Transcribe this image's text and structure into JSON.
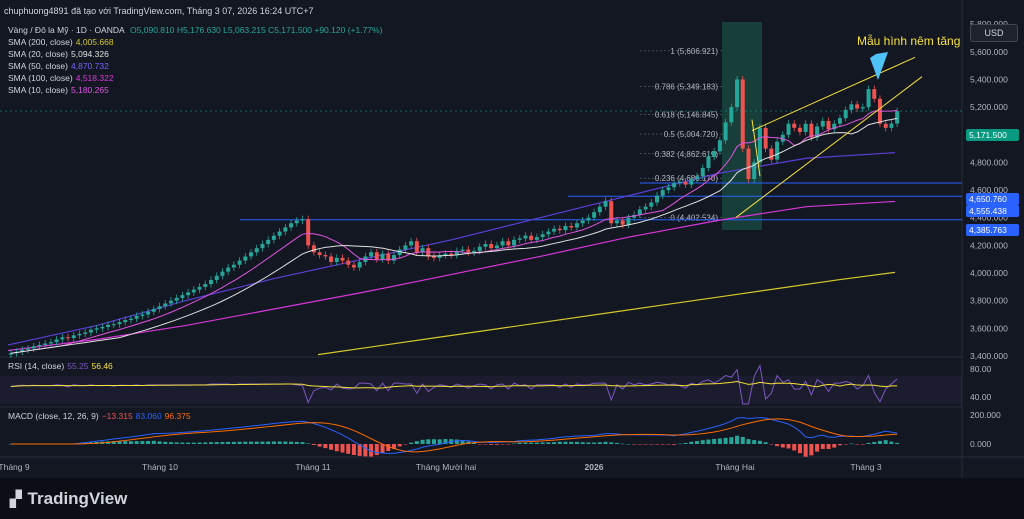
{
  "header": {
    "title": "chuphuong4891 đã tạo với TradingView.com, Tháng 3 07, 2026 16:24 UTC+7"
  },
  "currency_button": "USD",
  "brand": "TradingView",
  "colors": {
    "background": "#131722",
    "up": "#26a69a",
    "down": "#ef5350",
    "sma200": "#d4c82a",
    "sma20": "#e0e0e0",
    "sma50": "#5b3fd6",
    "sma100": "#d836d8",
    "sma10": "#e055e0",
    "level_line": "#2962ff",
    "wedge": "#f7e13a",
    "rsi": "#7e57c2",
    "rsi_ma": "#f7e13a",
    "macd": "#2962ff",
    "signal": "#ff6d00"
  },
  "legend": {
    "symbol": "Vàng / Đô la Mỹ · 1D · OANDA",
    "ohlc": "O5,090.810 H5,176.630 L5,063.215 C5,171.500 +90.120 (+1.77%)",
    "sma": [
      {
        "label": "SMA (200, close)",
        "value": "4,005.668",
        "color": "#d4c82a"
      },
      {
        "label": "SMA (20, close)",
        "value": "5,094.326",
        "color": "#e0e0e0"
      },
      {
        "label": "SMA (50, close)",
        "value": "4,870.732",
        "color": "#5b3fd6"
      },
      {
        "label": "SMA (100, close)",
        "value": "4,518.322",
        "color": "#d836d8"
      },
      {
        "label": "SMA (10, close)",
        "value": "5,180.265",
        "color": "#e055e0"
      }
    ],
    "rsi": {
      "label": "RSI (14, close)",
      "v1": "55.25",
      "v2": "56.46"
    },
    "macd": {
      "label": "MACD (close, 12, 26, 9)",
      "v1": "−13.315",
      "v2": "83.060",
      "v3": "96.375"
    }
  },
  "annotation": "Mẫu hình nêm tăng",
  "price_tags": [
    {
      "value": "5,171.500",
      "price": 5171.5,
      "color": "#089981"
    },
    {
      "value": "4,650.760",
      "price": 4650.76,
      "color": "#2962ff"
    },
    {
      "value": "4,555.438",
      "price": 4555.44,
      "color": "#2962ff"
    },
    {
      "value": "4,385.763",
      "price": 4385.76,
      "color": "#2962ff"
    }
  ],
  "chart_data": {
    "type": "candlestick",
    "y_ticks": [
      "5,800.000",
      "5,600.000",
      "5,400.000",
      "5,200.000",
      "5,000.000",
      "4,800.000",
      "4,600.000",
      "4,400.000",
      "4,200.000",
      "4,000.000",
      "3,800.000",
      "3,600.000",
      "3,400.000"
    ],
    "y_tick_values": [
      5800,
      5600,
      5400,
      5200,
      5000,
      4800,
      4600,
      4400,
      4200,
      4000,
      3800,
      3600,
      3400
    ],
    "ylim": [
      3400,
      5830
    ],
    "x_ticks": [
      "Tháng 9",
      "Tháng 10",
      "Tháng 11",
      "Tháng Mười hai",
      "2026",
      "Tháng Hai",
      "Tháng 3"
    ],
    "fib_levels": [
      {
        "label": "1 (5,606.921)",
        "value": 5606.92
      },
      {
        "label": "0.786 (5,349.183)",
        "value": 5349.18
      },
      {
        "label": "0.618 (5,146.845)",
        "value": 5146.85
      },
      {
        "label": "0.5 (5,004.720)",
        "value": 5004.72
      },
      {
        "label": "0.382 (4,862.619)",
        "value": 4862.62
      },
      {
        "label": "0.236 (4,686.170)",
        "value": 4686.17
      },
      {
        "label": "0 (4,402.534)",
        "value": 4402.53
      }
    ],
    "closes": [
      3420,
      3430,
      3445,
      3455,
      3470,
      3480,
      3490,
      3500,
      3520,
      3535,
      3530,
      3550,
      3560,
      3570,
      3590,
      3600,
      3610,
      3625,
      3630,
      3645,
      3660,
      3670,
      3690,
      3700,
      3720,
      3740,
      3760,
      3780,
      3800,
      3820,
      3840,
      3860,
      3880,
      3900,
      3920,
      3950,
      3980,
      4010,
      4040,
      4060,
      4090,
      4120,
      4150,
      4180,
      4210,
      4240,
      4270,
      4300,
      4330,
      4360,
      4380,
      4390,
      4200,
      4150,
      4130,
      4120,
      4080,
      4110,
      4090,
      4060,
      4040,
      4080,
      4120,
      4150,
      4100,
      4140,
      4090,
      4130,
      4170,
      4200,
      4230,
      4150,
      4180,
      4120,
      4110,
      4130,
      4140,
      4130,
      4160,
      4170,
      4150,
      4160,
      4190,
      4210,
      4180,
      4200,
      4230,
      4200,
      4240,
      4250,
      4270,
      4240,
      4260,
      4280,
      4300,
      4320,
      4310,
      4340,
      4330,
      4360,
      4380,
      4400,
      4440,
      4480,
      4520,
      4360,
      4380,
      4350,
      4400,
      4420,
      4460,
      4480,
      4510,
      4560,
      4600,
      4620,
      4650,
      4660,
      4640,
      4680,
      4700,
      4760,
      4840,
      4880,
      4960,
      5090,
      5200,
      5400,
      4900,
      4680,
      4800,
      5050,
      4900,
      4820,
      4950,
      5000,
      5080,
      5050,
      5020,
      5080,
      4980,
      5060,
      5100,
      5040,
      5080,
      5120,
      5180,
      5220,
      5190,
      5200,
      5330,
      5260,
      5080,
      5050,
      5081,
      5171
    ],
    "sma_series": [
      {
        "name": "SMA 200",
        "values": [
          3410,
          3470,
          3530,
          3590,
          3650,
          3710,
          3770,
          3830,
          3890,
          3950,
          4005
        ]
      },
      {
        "name": "SMA 100",
        "values": [
          3440,
          3520,
          3620,
          3740,
          3860,
          3990,
          4120,
          4260,
          4380,
          4480,
          4518
        ]
      },
      {
        "name": "SMA 50",
        "values": [
          3480,
          3620,
          3800,
          3960,
          4100,
          4240,
          4400,
          4560,
          4720,
          4830,
          4871
        ]
      }
    ],
    "rsi": {
      "ylim": [
        30,
        90
      ],
      "ticks": [
        "80.00",
        "40.00"
      ],
      "tick_values": [
        80,
        40
      ],
      "last": 55.25
    },
    "macd": {
      "ticks": [
        "200.000",
        "0.000"
      ],
      "tick_values": [
        200,
        0
      ],
      "last": -13.315
    }
  }
}
